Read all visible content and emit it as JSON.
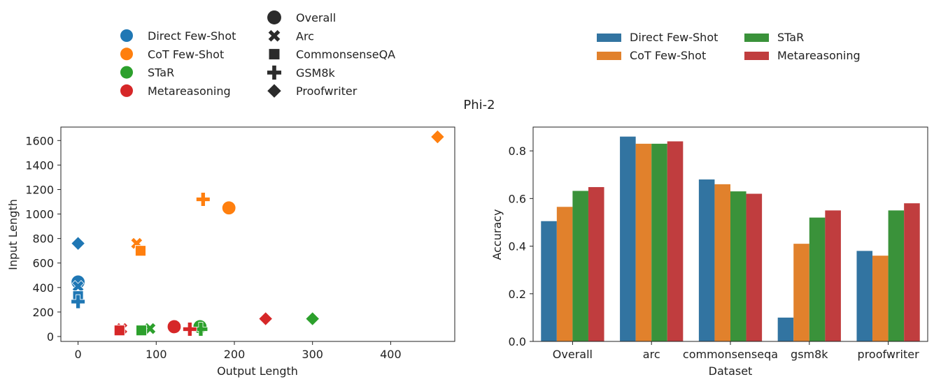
{
  "figure_title": "Phi-2",
  "colors": {
    "Direct Few-Shot": "#1f77b4",
    "CoT Few-Shot": "#ff7f0e",
    "STaR": "#2ca02c",
    "Metareasoning": "#d62728"
  },
  "bar_colors": {
    "Direct Few-Shot": "#3274a1",
    "CoT Few-Shot": "#e1812c",
    "STaR": "#3a923a",
    "Metareasoning": "#c03d3e"
  },
  "legend_left": {
    "methods": [
      "Direct Few-Shot",
      "CoT Few-Shot",
      "STaR",
      "Metareasoning"
    ],
    "datasets": [
      {
        "label": "Overall",
        "marker": "circle"
      },
      {
        "label": "Arc",
        "marker": "x"
      },
      {
        "label": "CommonsenseQA",
        "marker": "square"
      },
      {
        "label": "GSM8k",
        "marker": "plus"
      },
      {
        "label": "Proofwriter",
        "marker": "diamond"
      }
    ]
  },
  "legend_right": [
    "Direct Few-Shot",
    "CoT Few-Shot",
    "STaR",
    "Metareasoning"
  ],
  "chart_data": [
    {
      "type": "scatter",
      "xlabel": "Output Length",
      "ylabel": "Input Length",
      "xlim": [
        -22,
        482
      ],
      "ylim": [
        -40,
        1710
      ],
      "xticks": [
        0,
        100,
        200,
        300,
        400
      ],
      "yticks": [
        0,
        200,
        400,
        600,
        800,
        1000,
        1200,
        1400,
        1600
      ],
      "grid": false,
      "points": [
        {
          "method": "Direct Few-Shot",
          "dataset": "Overall",
          "x": 0,
          "y": 445
        },
        {
          "method": "Direct Few-Shot",
          "dataset": "Arc",
          "x": 0,
          "y": 410
        },
        {
          "method": "Direct Few-Shot",
          "dataset": "CommonsenseQA",
          "x": 0,
          "y": 330
        },
        {
          "method": "Direct Few-Shot",
          "dataset": "GSM8k",
          "x": 0,
          "y": 285
        },
        {
          "method": "Direct Few-Shot",
          "dataset": "Proofwriter",
          "x": 0,
          "y": 760
        },
        {
          "method": "CoT Few-Shot",
          "dataset": "Overall",
          "x": 193,
          "y": 1050
        },
        {
          "method": "CoT Few-Shot",
          "dataset": "Arc",
          "x": 75,
          "y": 760
        },
        {
          "method": "CoT Few-Shot",
          "dataset": "CommonsenseQA",
          "x": 80,
          "y": 700
        },
        {
          "method": "CoT Few-Shot",
          "dataset": "GSM8k",
          "x": 160,
          "y": 1120
        },
        {
          "method": "CoT Few-Shot",
          "dataset": "Proofwriter",
          "x": 460,
          "y": 1630
        },
        {
          "method": "STaR",
          "dataset": "Overall",
          "x": 156,
          "y": 80
        },
        {
          "method": "STaR",
          "dataset": "Arc",
          "x": 92,
          "y": 65
        },
        {
          "method": "STaR",
          "dataset": "CommonsenseQA",
          "x": 81,
          "y": 50
        },
        {
          "method": "STaR",
          "dataset": "GSM8k",
          "x": 157,
          "y": 60
        },
        {
          "method": "STaR",
          "dataset": "Proofwriter",
          "x": 300,
          "y": 145
        },
        {
          "method": "Metareasoning",
          "dataset": "Overall",
          "x": 123,
          "y": 80
        },
        {
          "method": "Metareasoning",
          "dataset": "Arc",
          "x": 56,
          "y": 65
        },
        {
          "method": "Metareasoning",
          "dataset": "CommonsenseQA",
          "x": 53,
          "y": 50
        },
        {
          "method": "Metareasoning",
          "dataset": "GSM8k",
          "x": 143,
          "y": 60
        },
        {
          "method": "Metareasoning",
          "dataset": "Proofwriter",
          "x": 240,
          "y": 145
        }
      ]
    },
    {
      "type": "bar",
      "xlabel": "Dataset",
      "ylabel": "Accuracy",
      "categories": [
        "Overall",
        "arc",
        "commonsenseqa",
        "gsm8k",
        "proofwriter"
      ],
      "ylim": [
        0,
        0.9
      ],
      "yticks": [
        0.0,
        0.2,
        0.4,
        0.6,
        0.8
      ],
      "grid": false,
      "series": [
        {
          "name": "Direct Few-Shot",
          "values": [
            0.505,
            0.86,
            0.68,
            0.1,
            0.38
          ]
        },
        {
          "name": "CoT Few-Shot",
          "values": [
            0.565,
            0.83,
            0.66,
            0.41,
            0.36
          ]
        },
        {
          "name": "STaR",
          "values": [
            0.632,
            0.83,
            0.63,
            0.52,
            0.55
          ]
        },
        {
          "name": "Metareasoning",
          "values": [
            0.648,
            0.84,
            0.62,
            0.55,
            0.58
          ]
        }
      ]
    }
  ]
}
